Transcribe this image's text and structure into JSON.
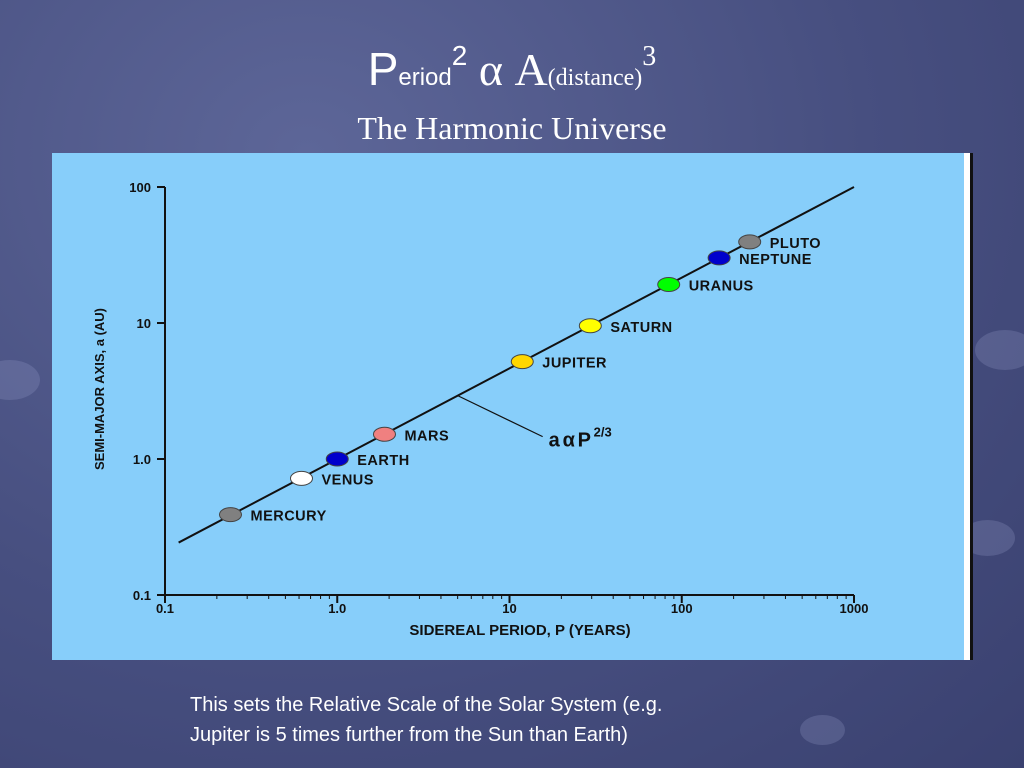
{
  "title": {
    "p_letter": "P",
    "p_rest": "eriod",
    "p_exp": "2",
    "alpha": "α",
    "a_letter": "A",
    "a_rest": "(distance)",
    "a_exp": "3",
    "subtitle": "The Harmonic Universe"
  },
  "caption": {
    "line1": "This sets the Relative Scale of the Solar System (e.g.",
    "line2": "Jupiter is 5 times further from the Sun than Earth)"
  },
  "chart_data": {
    "type": "scatter",
    "xlabel": "SIDEREAL PERIOD, P (YEARS)",
    "ylabel": "SEMI-MAJOR AXIS, a (AU)",
    "xscale": "log",
    "yscale": "log",
    "xlim": [
      0.1,
      1000
    ],
    "ylim": [
      0.1,
      100
    ],
    "x_ticks": [
      "0.1",
      "1.0",
      "10",
      "100",
      "1000"
    ],
    "y_ticks": [
      "0.1",
      "1.0",
      "10",
      "100"
    ],
    "grid": false,
    "annotation": {
      "base": "a",
      "symbol": "α",
      "var": "P",
      "exp": "2/3"
    },
    "fit_line": {
      "x": [
        0.12,
        1000
      ],
      "y": [
        0.243,
        100
      ]
    },
    "points": [
      {
        "label": "MERCURY",
        "x": 0.24,
        "y": 0.39,
        "color": "#808080"
      },
      {
        "label": "VENUS",
        "x": 0.62,
        "y": 0.72,
        "color": "#ffffff"
      },
      {
        "label": "EARTH",
        "x": 1.0,
        "y": 1.0,
        "color": "#0000cc"
      },
      {
        "label": "MARS",
        "x": 1.88,
        "y": 1.52,
        "color": "#f08080"
      },
      {
        "label": "JUPITER",
        "x": 11.86,
        "y": 5.2,
        "color": "#ffd700"
      },
      {
        "label": "SATURN",
        "x": 29.46,
        "y": 9.54,
        "color": "#ffff00"
      },
      {
        "label": "URANUS",
        "x": 84.0,
        "y": 19.2,
        "color": "#00ff00"
      },
      {
        "label": "NEPTUNE",
        "x": 164.8,
        "y": 30.1,
        "color": "#0000cc"
      },
      {
        "label": "PLUTO",
        "x": 248.0,
        "y": 39.5,
        "color": "#808080"
      }
    ]
  }
}
